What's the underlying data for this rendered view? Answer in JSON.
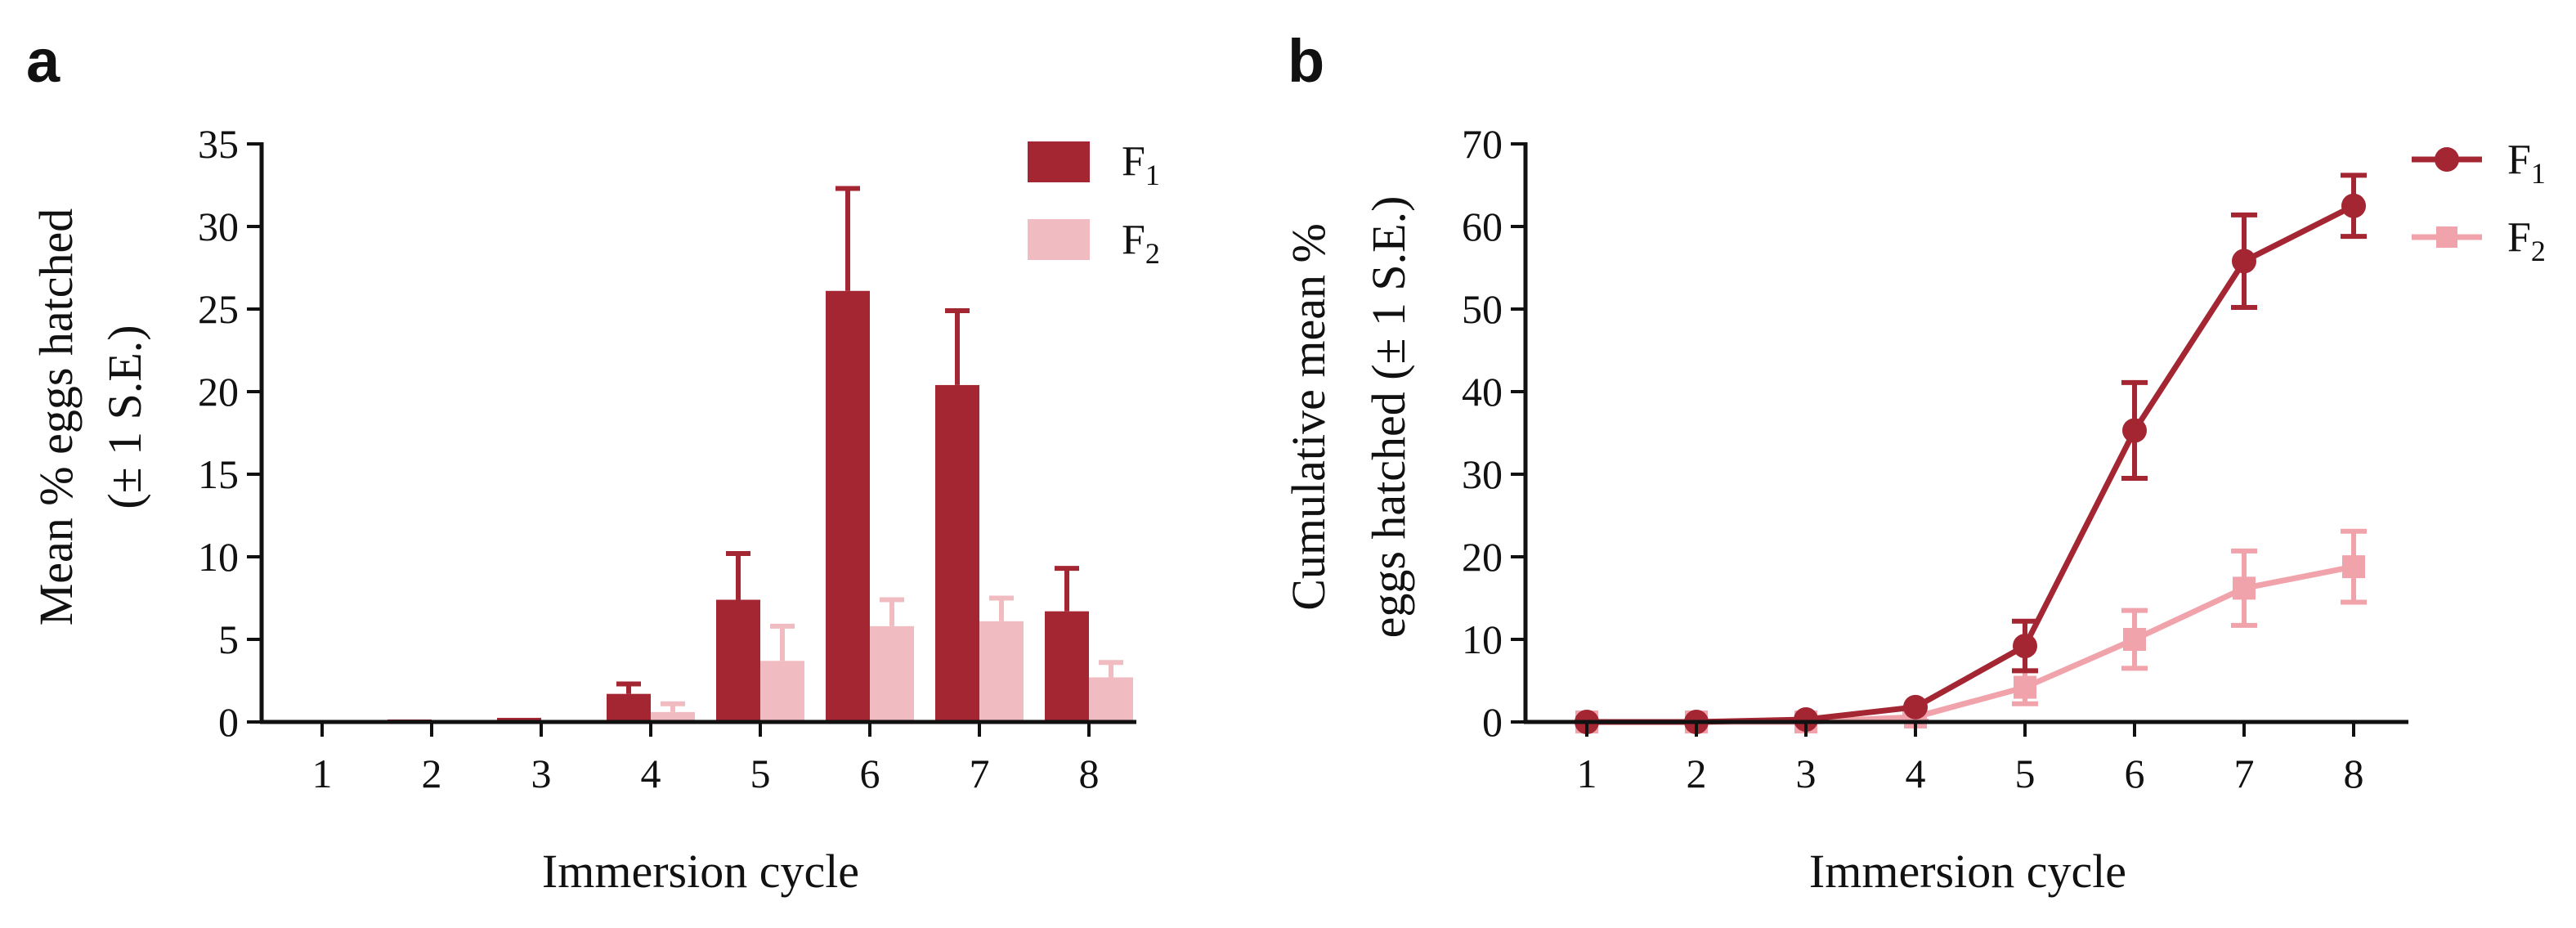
{
  "chart_data": [
    {
      "panel": "a",
      "type": "bar",
      "categories": [
        "1",
        "2",
        "3",
        "4",
        "5",
        "6",
        "7",
        "8"
      ],
      "series": [
        {
          "name": "F",
          "subscript": "1",
          "color": "#a32632",
          "values": [
            0,
            0.15,
            0.25,
            1.7,
            7.4,
            26.1,
            20.4,
            6.7
          ],
          "se": [
            0,
            0,
            0,
            0.6,
            2.8,
            6.2,
            4.5,
            2.6
          ]
        },
        {
          "name": "F",
          "subscript": "2",
          "color": "#f1bcc1",
          "values": [
            0,
            0,
            0,
            0.6,
            3.7,
            5.8,
            6.1,
            2.7
          ],
          "se": [
            0,
            0,
            0,
            0.5,
            2.1,
            1.6,
            1.4,
            0.9
          ]
        }
      ],
      "xlabel": "Immersion cycle",
      "ylabel_line1": "Mean % eggs hatched",
      "ylabel_line2": "(± 1 S.E.)",
      "ylim": [
        0,
        35
      ],
      "yticks": [
        0,
        5,
        10,
        15,
        20,
        25,
        30,
        35
      ],
      "legend_position": "top-right"
    },
    {
      "panel": "b",
      "type": "line",
      "x": [
        1,
        2,
        3,
        4,
        5,
        6,
        7,
        8
      ],
      "series": [
        {
          "name": "F",
          "subscript": "1",
          "color": "#a32632",
          "marker": "circle",
          "values": [
            0,
            0,
            0.3,
            1.8,
            9.2,
            35.3,
            55.8,
            62.5
          ],
          "se": [
            0,
            0,
            0,
            0,
            3.0,
            5.8,
            5.6,
            3.7
          ]
        },
        {
          "name": "F",
          "subscript": "2",
          "color": "#f0a3ab",
          "marker": "square",
          "values": [
            0,
            0,
            0,
            0.6,
            4.2,
            10.0,
            16.2,
            18.8
          ],
          "se": [
            0,
            0,
            0,
            0.5,
            2.0,
            3.5,
            4.5,
            4.3
          ]
        }
      ],
      "xlabel": "Immersion cycle",
      "ylabel_line1": "Cumulative mean %",
      "ylabel_line2": "eggs hatched  (± 1 S.E.)",
      "ylim": [
        0,
        70
      ],
      "yticks": [
        0,
        10,
        20,
        30,
        40,
        50,
        60,
        70
      ],
      "legend_position": "top-right"
    }
  ]
}
